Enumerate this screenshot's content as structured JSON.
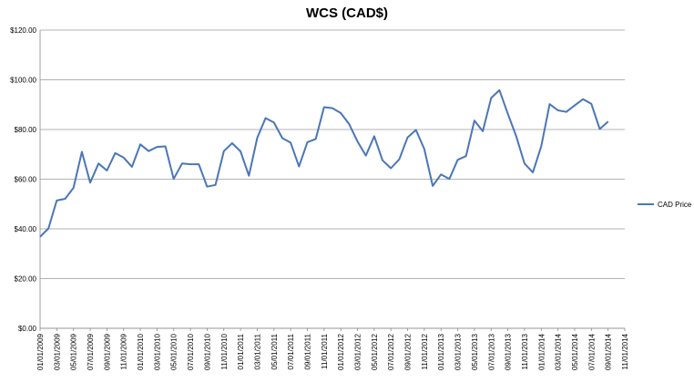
{
  "chart_data": {
    "type": "line",
    "title": "WCS (CAD$)",
    "xlabel": "",
    "ylabel": "",
    "ylim": [
      0,
      120
    ],
    "grid": "horizontal",
    "legend": "right",
    "y_ticks": [
      "$0.00",
      "$20.00",
      "$40.00",
      "$60.00",
      "$80.00",
      "$100.00",
      "$120.00"
    ],
    "x_ticks": [
      "01/01/2009",
      "03/01/2009",
      "05/01/2009",
      "07/01/2009",
      "09/01/2009",
      "11/01/2009",
      "01/01/2010",
      "03/01/2010",
      "05/01/2010",
      "07/01/2010",
      "09/01/2010",
      "11/01/2010",
      "01/01/2011",
      "03/01/2011",
      "05/01/2011",
      "07/01/2011",
      "09/01/2011",
      "11/01/2011",
      "01/01/2012",
      "03/01/2012",
      "05/01/2012",
      "07/01/2012",
      "09/01/2012",
      "11/01/2012",
      "01/01/2013",
      "03/01/2013",
      "05/01/2013",
      "07/01/2013",
      "09/01/2013",
      "11/01/2013",
      "01/01/2014",
      "03/01/2014",
      "05/01/2014",
      "07/01/2014",
      "09/01/2014",
      "11/01/2014"
    ],
    "series_color": "#4a76b8",
    "series": [
      {
        "name": "CAD Price",
        "x": [
          "01/2009",
          "02/2009",
          "03/2009",
          "04/2009",
          "05/2009",
          "06/2009",
          "07/2009",
          "08/2009",
          "09/2009",
          "10/2009",
          "11/2009",
          "12/2009",
          "01/2010",
          "02/2010",
          "03/2010",
          "04/2010",
          "05/2010",
          "06/2010",
          "07/2010",
          "08/2010",
          "09/2010",
          "10/2010",
          "11/2010",
          "12/2010",
          "01/2011",
          "02/2011",
          "03/2011",
          "04/2011",
          "05/2011",
          "06/2011",
          "07/2011",
          "08/2011",
          "09/2011",
          "10/2011",
          "11/2011",
          "12/2011",
          "01/2012",
          "02/2012",
          "03/2012",
          "04/2012",
          "05/2012",
          "06/2012",
          "07/2012",
          "08/2012",
          "09/2012",
          "10/2012",
          "11/2012",
          "12/2012",
          "01/2013",
          "02/2013",
          "03/2013",
          "04/2013",
          "05/2013",
          "06/2013",
          "07/2013",
          "08/2013",
          "09/2013",
          "10/2013",
          "11/2013",
          "12/2013",
          "01/2014",
          "02/2014",
          "03/2014",
          "04/2014",
          "05/2014",
          "06/2014",
          "07/2014",
          "08/2014",
          "09/2014"
        ],
        "values": [
          36.8,
          40.2,
          51.4,
          52.1,
          56.5,
          71.0,
          58.6,
          66.3,
          63.5,
          70.5,
          68.7,
          65.0,
          74.0,
          71.3,
          73.0,
          73.2,
          60.1,
          66.3,
          66.0,
          66.0,
          57.0,
          57.7,
          71.3,
          74.5,
          71.2,
          61.4,
          76.7,
          84.6,
          82.8,
          76.5,
          74.7,
          65.1,
          74.9,
          76.2,
          89.0,
          88.6,
          86.6,
          82.2,
          75.2,
          69.5,
          77.3,
          67.6,
          64.4,
          68.0,
          76.8,
          79.8,
          72.1,
          57.3,
          61.9,
          60.1,
          67.8,
          69.3,
          83.6,
          79.3,
          92.7,
          95.8,
          86.3,
          77.3,
          66.3,
          62.7,
          73.3,
          90.2,
          87.7,
          87.1,
          89.7,
          92.2,
          90.3,
          80.2,
          83.2
        ]
      }
    ]
  }
}
